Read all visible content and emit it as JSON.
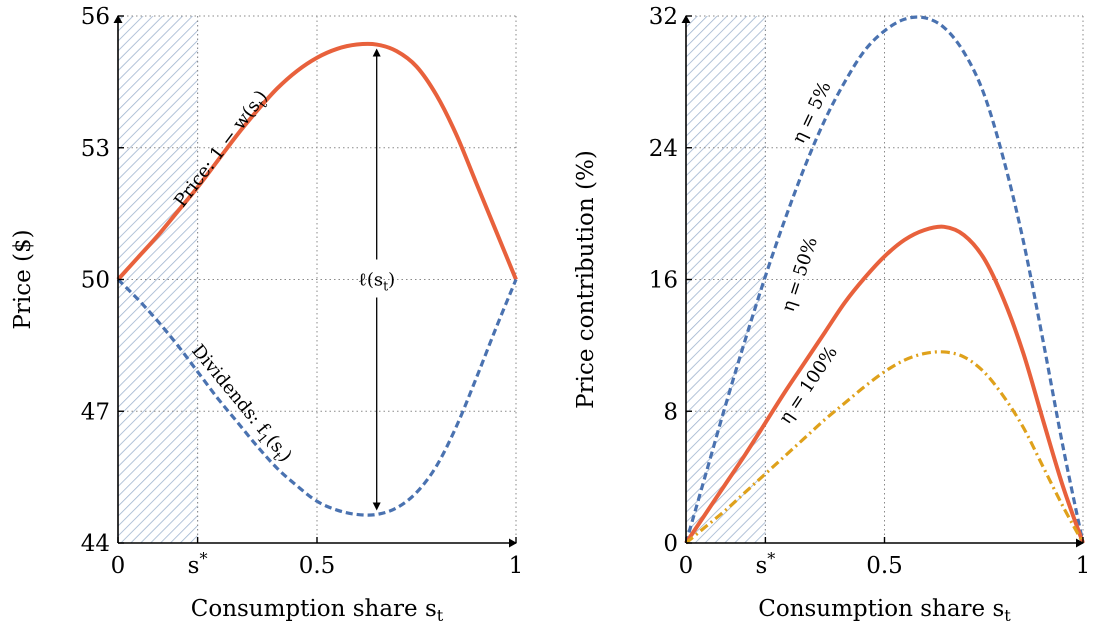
{
  "chart_data": [
    {
      "type": "line",
      "xlabel": "Consumption share s_t",
      "ylabel": "Price ($)",
      "xlim": [
        0,
        1
      ],
      "ylim": [
        44,
        56
      ],
      "x_ticks": [
        0,
        0.2,
        0.5,
        1
      ],
      "x_tick_labels": [
        "0",
        "s*",
        "0.5",
        "1"
      ],
      "y_ticks": [
        44,
        47,
        50,
        53,
        56
      ],
      "y_tick_labels": [
        "44",
        "47",
        "50",
        "53",
        "56"
      ],
      "grid": true,
      "shaded_region": {
        "x": [
          0,
          0.2
        ],
        "pattern": "diagonal hatch",
        "color": "#9fb4cf"
      },
      "x": [
        0,
        0.05,
        0.1,
        0.15,
        0.2,
        0.25,
        0.3,
        0.35,
        0.4,
        0.45,
        0.5,
        0.55,
        0.6,
        0.65,
        0.7,
        0.75,
        0.8,
        0.85,
        0.9,
        0.95,
        1
      ],
      "series": [
        {
          "name": "Price: 1 − w(s_t)",
          "color": "#e8613c",
          "style": "solid",
          "values": [
            50.0,
            50.5,
            51.0,
            51.55,
            52.1,
            52.7,
            53.3,
            53.85,
            54.35,
            54.75,
            55.05,
            55.25,
            55.35,
            55.35,
            55.2,
            54.85,
            54.2,
            53.3,
            52.2,
            51.1,
            50.0
          ]
        },
        {
          "name": "Dividends: f_1(s_t)",
          "color": "#4a72b0",
          "style": "dashed",
          "values": [
            50.0,
            49.55,
            49.05,
            48.5,
            47.9,
            47.3,
            46.75,
            46.2,
            45.7,
            45.3,
            44.95,
            44.75,
            44.65,
            44.65,
            44.8,
            45.15,
            45.75,
            46.65,
            47.75,
            48.9,
            50.0
          ]
        }
      ],
      "annotations": [
        {
          "text": "Price: 1 − w(s_t)",
          "x": 0.27,
          "y": 52.9
        },
        {
          "text": "Dividends: f_1(s_t)",
          "x": 0.3,
          "y": 47.1
        },
        {
          "text": "ℓ(s_t)",
          "x": 0.65,
          "y": 50,
          "arrow": [
            44.65,
            55.35
          ]
        }
      ]
    },
    {
      "type": "line",
      "xlabel": "Consumption share s_t",
      "ylabel": "Price contribution (%)",
      "xlim": [
        0,
        1
      ],
      "ylim": [
        0,
        32
      ],
      "x_ticks": [
        0,
        0.2,
        0.5,
        1
      ],
      "x_tick_labels": [
        "0",
        "s*",
        "0.5",
        "1"
      ],
      "y_ticks": [
        0,
        8,
        16,
        24,
        32
      ],
      "y_tick_labels": [
        "0",
        "8",
        "16",
        "24",
        "32"
      ],
      "grid": true,
      "shaded_region": {
        "x": [
          0,
          0.2
        ],
        "pattern": "diagonal hatch",
        "color": "#9fb4cf"
      },
      "x": [
        0,
        0.05,
        0.1,
        0.15,
        0.2,
        0.25,
        0.3,
        0.35,
        0.4,
        0.45,
        0.5,
        0.55,
        0.6,
        0.65,
        0.7,
        0.75,
        0.8,
        0.85,
        0.9,
        0.95,
        1
      ],
      "series": [
        {
          "name": "η = 5%",
          "color": "#4a72b0",
          "style": "dashed",
          "values": [
            0,
            4.2,
            8.4,
            12.4,
            16.2,
            19.7,
            22.9,
            25.7,
            28.0,
            29.9,
            31.1,
            31.8,
            31.9,
            31.3,
            29.8,
            27.3,
            23.3,
            18.3,
            12.2,
            5.8,
            0
          ]
        },
        {
          "name": "η = 50%",
          "color": "#e8613c",
          "style": "solid",
          "values": [
            0,
            1.8,
            3.6,
            5.4,
            7.3,
            9.2,
            11.0,
            12.8,
            14.6,
            16.1,
            17.4,
            18.4,
            19.0,
            19.2,
            18.7,
            17.3,
            14.8,
            11.5,
            7.4,
            3.4,
            0
          ]
        },
        {
          "name": "η = 100%",
          "color": "#dfa11b",
          "style": "dashdot",
          "values": [
            0,
            1.0,
            2.0,
            3.1,
            4.2,
            5.3,
            6.4,
            7.5,
            8.5,
            9.5,
            10.4,
            11.1,
            11.5,
            11.6,
            11.3,
            10.4,
            8.9,
            7.0,
            4.6,
            2.2,
            0
          ]
        }
      ],
      "annotations": [
        {
          "text": "η = 5%",
          "x": 0.33,
          "y": 26
        },
        {
          "text": "η = 50%",
          "x": 0.3,
          "y": 16.2
        },
        {
          "text": "η = 100%",
          "x": 0.32,
          "y": 9.4
        }
      ]
    }
  ]
}
